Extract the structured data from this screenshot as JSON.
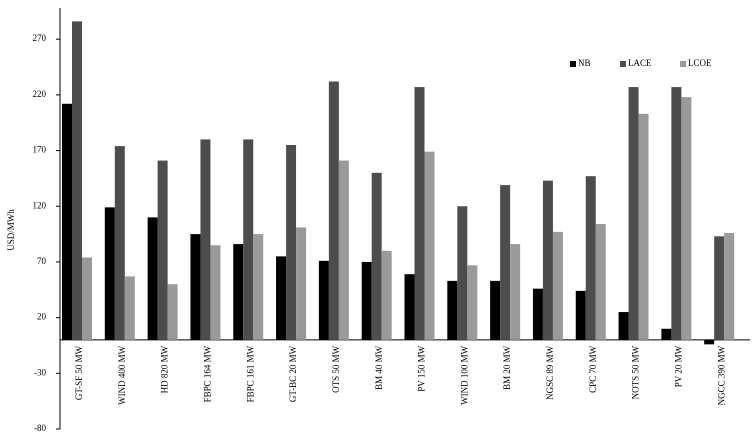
{
  "chart_data": {
    "type": "bar",
    "y_label": "USD/MWh",
    "categories": [
      "GT-SF 50 MW",
      "WIND 400 MW",
      "HD 820 MW",
      "FBPC 164 MW",
      "FBPC 161 MW",
      "GT-BC 20 MW",
      "OTS 50 MW",
      "BM 40 MW",
      "PV 150 MW",
      "WIND 100 MW",
      "BM 20 MW",
      "NGSC 89 MW",
      "CPC 70 MW",
      "NOTS 50 MW",
      "PV 20 MW",
      "NGCC 390 MW"
    ],
    "series": [
      {
        "name": "NB",
        "color": "#000000",
        "values": [
          212,
          119,
          110,
          95,
          86,
          75,
          71,
          70,
          59,
          53,
          53,
          46,
          44,
          25,
          10,
          -4
        ]
      },
      {
        "name": "LACE",
        "color": "#4d4d4d",
        "values": [
          286,
          174,
          161,
          180,
          180,
          175,
          232,
          150,
          227,
          120,
          139,
          143,
          147,
          227,
          227,
          93
        ]
      },
      {
        "name": "LCOE",
        "color": "#9a9a9a",
        "values": [
          74,
          57,
          50,
          85,
          95,
          101,
          161,
          80,
          169,
          67,
          86,
          97,
          104,
          203,
          218,
          96
        ]
      }
    ],
    "ylim": [
      -80,
      298
    ],
    "yticks": [
      -80,
      -30,
      20,
      70,
      120,
      170,
      220,
      270
    ],
    "legend": "top-right"
  }
}
